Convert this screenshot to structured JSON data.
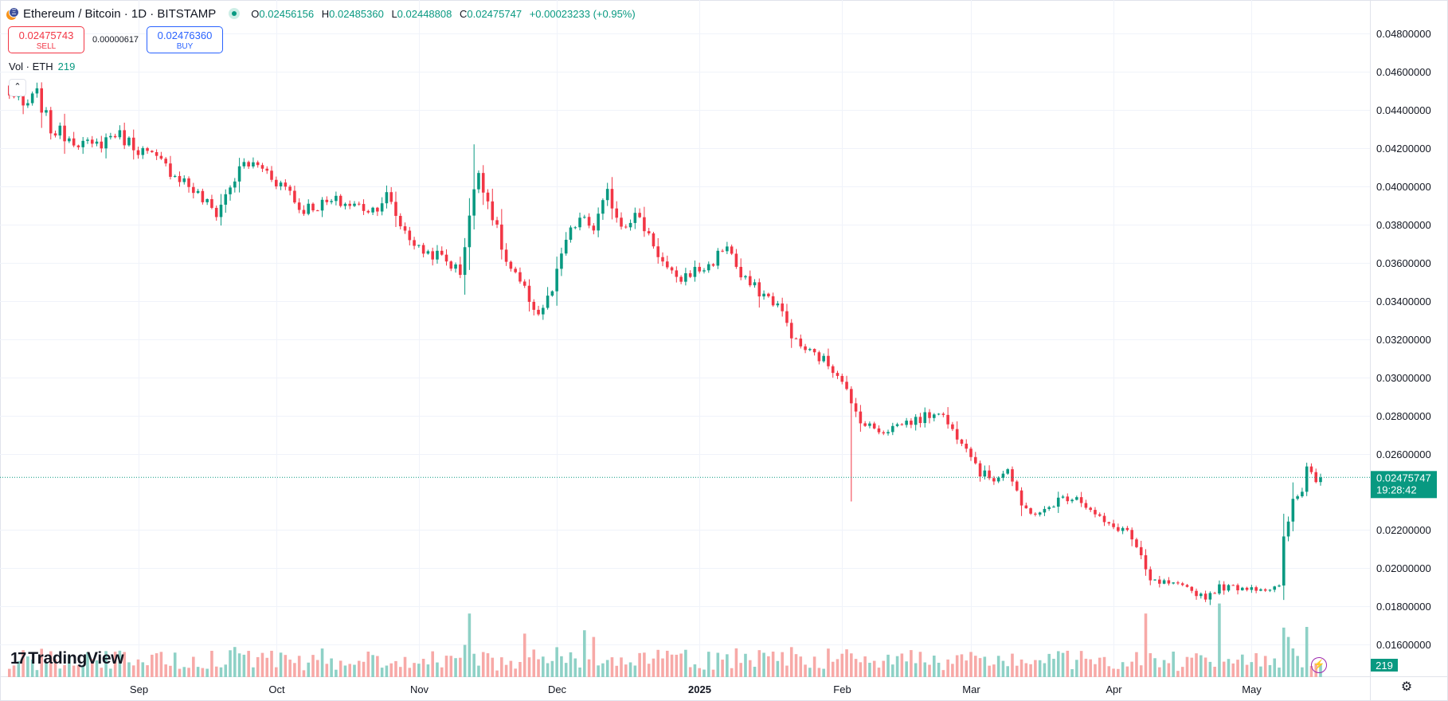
{
  "header": {
    "symbol_title": "Ethereum / Bitcoin · 1D · BITSTAMP",
    "ohlc": {
      "o_label": "O",
      "o": "0.02456156",
      "h_label": "H",
      "h": "0.02485360",
      "l_label": "L",
      "l": "0.02448808",
      "c_label": "C",
      "c": "0.02475747",
      "change": "+0.00023233 (+0.95%)"
    }
  },
  "trade": {
    "sell_price": "0.02475743",
    "sell_label": "SELL",
    "spread": "0.00000617",
    "buy_price": "0.02476360",
    "buy_label": "BUY"
  },
  "volume_legend": {
    "label": "Vol · ETH",
    "value": "219"
  },
  "branding": {
    "logo_text": "TradingView"
  },
  "colors": {
    "up": "#089981",
    "down": "#f23645",
    "vol_up": "#8ed1c6",
    "vol_down": "#f7a9a7",
    "grid": "#f0f3fa",
    "axis_text": "#131722"
  },
  "chart_data": {
    "type": "candlestick",
    "ylim": [
      0.0153,
      0.0488
    ],
    "y_ticks": [
      "0.04800000",
      "0.04600000",
      "0.04400000",
      "0.04200000",
      "0.04000000",
      "0.03800000",
      "0.03600000",
      "0.03400000",
      "0.03200000",
      "0.03000000",
      "0.02800000",
      "0.02600000",
      "0.02200000",
      "0.02000000",
      "0.01800000",
      "0.01600000"
    ],
    "x_labels": [
      {
        "label": "Sep",
        "date": "2024-09-01"
      },
      {
        "label": "Oct",
        "date": "2024-10-01"
      },
      {
        "label": "Nov",
        "date": "2024-11-01"
      },
      {
        "label": "Dec",
        "date": "2024-12-01"
      },
      {
        "label": "2025",
        "date": "2025-01-01"
      },
      {
        "label": "Feb",
        "date": "2025-02-01"
      },
      {
        "label": "Mar",
        "date": "2025-03-01"
      },
      {
        "label": "Apr",
        "date": "2025-04-01"
      },
      {
        "label": "May",
        "date": "2025-05-01"
      }
    ],
    "last_price": {
      "label": "0.02475747",
      "value": 0.02475747,
      "countdown": "19:28:42"
    },
    "last_volume": {
      "label": "219"
    },
    "start_date": "2024-08-03",
    "end_date": "2025-05-16",
    "close_anchors": [
      [
        "2024-08-03",
        0.0452
      ],
      [
        "2024-08-07",
        0.0441
      ],
      [
        "2024-08-10",
        0.0448
      ],
      [
        "2024-08-13",
        0.043
      ],
      [
        "2024-08-18",
        0.0425
      ],
      [
        "2024-08-22",
        0.042
      ],
      [
        "2024-08-27",
        0.0428
      ],
      [
        "2024-09-01",
        0.042
      ],
      [
        "2024-09-06",
        0.0412
      ],
      [
        "2024-09-11",
        0.0403
      ],
      [
        "2024-09-15",
        0.0393
      ],
      [
        "2024-09-18",
        0.0386
      ],
      [
        "2024-09-21",
        0.04
      ],
      [
        "2024-09-24",
        0.0412
      ],
      [
        "2024-09-28",
        0.041
      ],
      [
        "2024-10-01",
        0.0403
      ],
      [
        "2024-10-04",
        0.0398
      ],
      [
        "2024-10-06",
        0.0388
      ],
      [
        "2024-10-10",
        0.039
      ],
      [
        "2024-10-14",
        0.0392
      ],
      [
        "2024-10-18",
        0.039
      ],
      [
        "2024-10-22",
        0.0388
      ],
      [
        "2024-10-25",
        0.0395
      ],
      [
        "2024-10-28",
        0.038
      ],
      [
        "2024-11-01",
        0.0367
      ],
      [
        "2024-11-06",
        0.0363
      ],
      [
        "2024-11-10",
        0.0355
      ],
      [
        "2024-11-12",
        0.0385
      ],
      [
        "2024-11-14",
        0.0408
      ],
      [
        "2024-11-17",
        0.0385
      ],
      [
        "2024-11-20",
        0.036
      ],
      [
        "2024-11-24",
        0.0345
      ],
      [
        "2024-11-27",
        0.0333
      ],
      [
        "2024-11-30",
        0.0345
      ],
      [
        "2024-12-03",
        0.0372
      ],
      [
        "2024-12-06",
        0.0383
      ],
      [
        "2024-12-09",
        0.0378
      ],
      [
        "2024-12-12",
        0.0396
      ],
      [
        "2024-12-15",
        0.038
      ],
      [
        "2024-12-18",
        0.0385
      ],
      [
        "2024-12-21",
        0.0375
      ],
      [
        "2024-12-24",
        0.036
      ],
      [
        "2024-12-27",
        0.035
      ],
      [
        "2024-12-30",
        0.0355
      ],
      [
        "2025-01-03",
        0.0358
      ],
      [
        "2025-01-07",
        0.037
      ],
      [
        "2025-01-10",
        0.0352
      ],
      [
        "2025-01-14",
        0.0345
      ],
      [
        "2025-01-18",
        0.0338
      ],
      [
        "2025-01-22",
        0.0318
      ],
      [
        "2025-01-25",
        0.0313
      ],
      [
        "2025-01-28",
        0.0309
      ],
      [
        "2025-02-01",
        0.03
      ],
      [
        "2025-02-03",
        0.0285
      ],
      [
        "2025-02-06",
        0.0275
      ],
      [
        "2025-02-10",
        0.0272
      ],
      [
        "2025-02-14",
        0.0276
      ],
      [
        "2025-02-18",
        0.0278
      ],
      [
        "2025-02-22",
        0.0283
      ],
      [
        "2025-02-25",
        0.0272
      ],
      [
        "2025-02-28",
        0.0265
      ],
      [
        "2025-03-03",
        0.025
      ],
      [
        "2025-03-06",
        0.0247
      ],
      [
        "2025-03-09",
        0.0252
      ],
      [
        "2025-03-12",
        0.0232
      ],
      [
        "2025-03-16",
        0.0228
      ],
      [
        "2025-03-20",
        0.0236
      ],
      [
        "2025-03-24",
        0.0238
      ],
      [
        "2025-03-27",
        0.023
      ],
      [
        "2025-03-31",
        0.0222
      ],
      [
        "2025-04-04",
        0.022
      ],
      [
        "2025-04-07",
        0.0205
      ],
      [
        "2025-04-09",
        0.0193
      ],
      [
        "2025-04-13",
        0.0192
      ],
      [
        "2025-04-17",
        0.0189
      ],
      [
        "2025-04-21",
        0.0185
      ],
      [
        "2025-04-24",
        0.019
      ],
      [
        "2025-04-28",
        0.019
      ],
      [
        "2025-05-01",
        0.019
      ],
      [
        "2025-05-05",
        0.0189
      ],
      [
        "2025-05-07",
        0.019
      ],
      [
        "2025-05-08",
        0.0215
      ],
      [
        "2025-05-10",
        0.0235
      ],
      [
        "2025-05-12",
        0.024
      ],
      [
        "2025-05-13",
        0.0255
      ],
      [
        "2025-05-15",
        0.0245
      ],
      [
        "2025-05-16",
        0.02475747
      ]
    ],
    "volume_spikes": [
      [
        "2024-09-22",
        0.9
      ],
      [
        "2024-11-12",
        1.9
      ],
      [
        "2024-11-24",
        1.3
      ],
      [
        "2024-12-07",
        1.4
      ],
      [
        "2024-12-09",
        1.2
      ],
      [
        "2025-04-08",
        1.9
      ],
      [
        "2025-04-24",
        2.2
      ],
      [
        "2025-05-09",
        1.2
      ],
      [
        "2025-05-13",
        1.5
      ]
    ]
  }
}
